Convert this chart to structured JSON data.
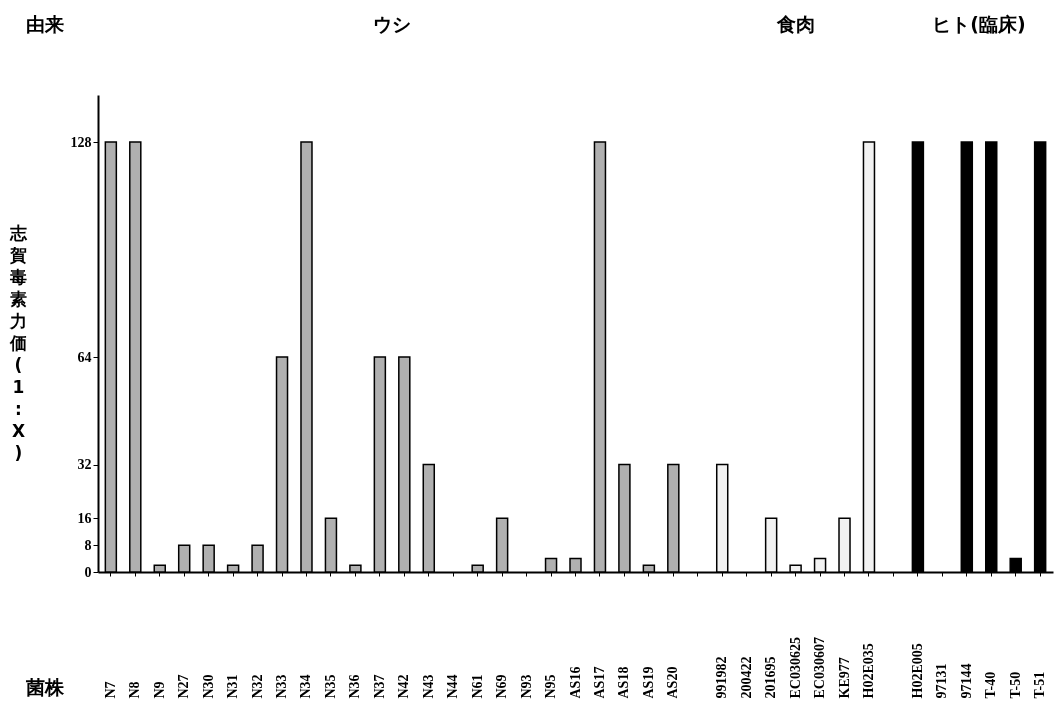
{
  "chart_data": {
    "type": "bar",
    "ylabel": "志賀毒素力価 (1:X)",
    "categories": [
      "N7",
      "N8",
      "N9",
      "N27",
      "N30",
      "N31",
      "N32",
      "N33",
      "N34",
      "N35",
      "N36",
      "N37",
      "N42",
      "N43",
      "N44",
      "N61",
      "N69",
      "N93",
      "N95",
      "AS16",
      "AS17",
      "AS18",
      "AS19",
      "AS20",
      null,
      "991982",
      "200422",
      "201695",
      "EC030625",
      "EC030607",
      "KE977",
      "H02E035",
      null,
      "H02E005",
      "97131",
      "97144",
      "T-40",
      "T-50",
      "T-51"
    ],
    "series": [
      {
        "color": "#b0b0b0",
        "values": [
          128,
          128,
          2,
          8,
          8,
          2,
          8,
          64,
          128,
          16,
          2,
          64,
          64,
          32,
          0,
          2,
          16,
          0,
          4,
          4,
          128,
          32,
          2,
          32,
          null,
          null,
          null,
          null,
          null,
          null,
          null,
          null,
          null,
          null,
          null,
          null,
          null,
          null,
          null
        ]
      },
      {
        "color": "#f2f2f2",
        "values": [
          null,
          null,
          null,
          null,
          null,
          null,
          null,
          null,
          null,
          null,
          null,
          null,
          null,
          null,
          null,
          null,
          null,
          null,
          null,
          null,
          null,
          null,
          null,
          null,
          null,
          32,
          0,
          16,
          2,
          4,
          16,
          128,
          null,
          null,
          null,
          null,
          null,
          null,
          null
        ]
      },
      {
        "color": "#000000",
        "values": [
          null,
          null,
          null,
          null,
          null,
          null,
          null,
          null,
          null,
          null,
          null,
          null,
          null,
          null,
          null,
          null,
          null,
          null,
          null,
          null,
          null,
          null,
          null,
          null,
          null,
          null,
          null,
          null,
          null,
          null,
          null,
          null,
          null,
          128,
          0,
          128,
          128,
          4,
          128
        ]
      }
    ],
    "ylim": [
      0,
      142
    ],
    "yticks": [
      0,
      8,
      16,
      32,
      64,
      128
    ],
    "annotations": [
      "由来",
      "ウシ",
      "食肉",
      "ヒト(臨床)",
      "菌株"
    ]
  }
}
